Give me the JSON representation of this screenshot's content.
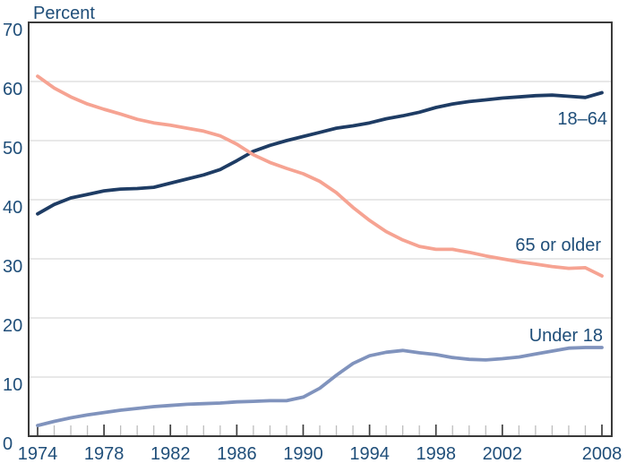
{
  "chart_data": {
    "type": "line",
    "title": "",
    "y_axis_title": "Percent",
    "x_label": "",
    "grid": "horizontal",
    "legend_position": "inline-right-of-lines",
    "ylim": [
      0,
      70
    ],
    "xlim": [
      1973.5,
      2008.6
    ],
    "y_ticks": [
      0,
      10,
      20,
      30,
      40,
      50,
      60,
      70
    ],
    "x_tick_labeled_years": [
      1974,
      1978,
      1982,
      1986,
      1990,
      1994,
      1998,
      2002,
      2008
    ],
    "x_minor_ticks_every_year": true,
    "years": [
      1974,
      1975,
      1976,
      1977,
      1978,
      1979,
      1980,
      1981,
      1982,
      1983,
      1984,
      1985,
      1986,
      1987,
      1988,
      1989,
      1990,
      1991,
      1992,
      1993,
      1994,
      1995,
      1996,
      1997,
      1998,
      1999,
      2000,
      2001,
      2002,
      2003,
      2004,
      2005,
      2006,
      2007,
      2008
    ],
    "series": [
      {
        "name": "18-64",
        "label": "18–64",
        "color": "#1e3c64",
        "values": [
          37.6,
          39.2,
          40.3,
          40.9,
          41.5,
          41.8,
          41.9,
          42.1,
          42.8,
          43.5,
          44.2,
          45.1,
          46.6,
          48.2,
          49.2,
          50.0,
          50.7,
          51.4,
          52.1,
          52.5,
          53.0,
          53.7,
          54.2,
          54.8,
          55.6,
          56.2,
          56.6,
          56.9,
          57.2,
          57.4,
          57.6,
          57.7,
          57.5,
          57.3,
          58.1
        ]
      },
      {
        "name": "65-or-older",
        "label": "65 or older",
        "color": "#f6a392",
        "values": [
          60.9,
          58.9,
          57.4,
          56.2,
          55.3,
          54.5,
          53.6,
          53.0,
          52.6,
          52.1,
          51.6,
          50.8,
          49.4,
          47.6,
          46.3,
          45.3,
          44.4,
          43.1,
          41.2,
          38.7,
          36.5,
          34.6,
          33.2,
          32.1,
          31.6,
          31.6,
          31.1,
          30.5,
          30.0,
          29.5,
          29.1,
          28.7,
          28.4,
          28.5,
          27.1
        ]
      },
      {
        "name": "under-18",
        "label": "Under 18",
        "color": "#8093bd",
        "values": [
          1.8,
          2.5,
          3.1,
          3.6,
          4.0,
          4.4,
          4.7,
          5.0,
          5.2,
          5.4,
          5.5,
          5.6,
          5.8,
          5.9,
          6.0,
          6.0,
          6.6,
          8.1,
          10.3,
          12.3,
          13.6,
          14.2,
          14.5,
          14.1,
          13.8,
          13.3,
          13.0,
          12.9,
          13.1,
          13.4,
          13.9,
          14.4,
          14.9,
          15.0,
          15.0
        ]
      }
    ]
  },
  "colors": {
    "background": "#ffffff",
    "plot_border": "#3a3a3a",
    "gridline": "#d9d9d9",
    "major_tick": "#3f3f3f",
    "minor_tick": "#bdbdbd",
    "text": "#1f4e79"
  }
}
